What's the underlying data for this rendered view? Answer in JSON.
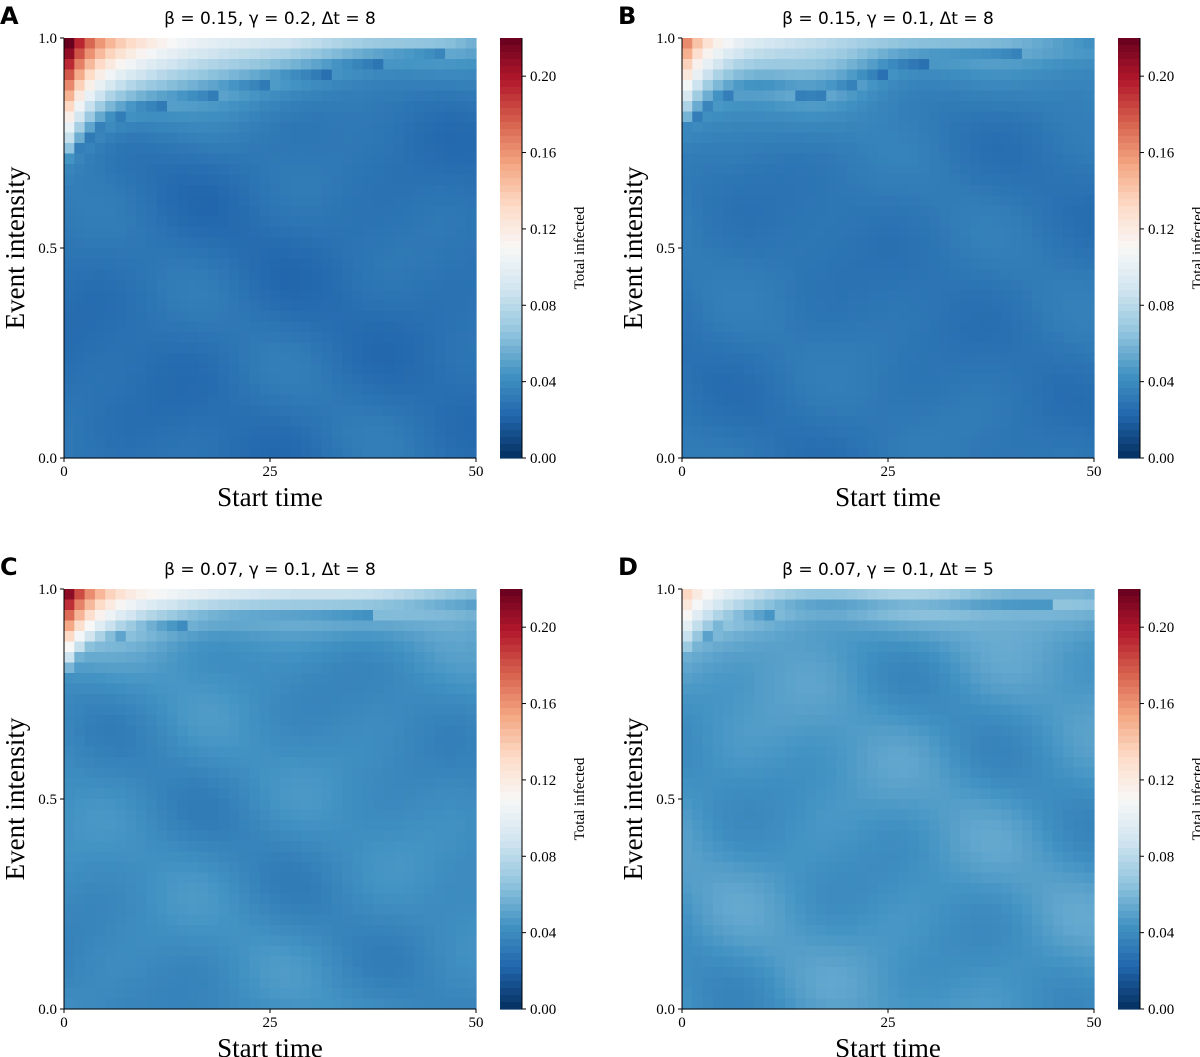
{
  "colormap": {
    "name": "RdBu_r",
    "stops": [
      "#053061",
      "#2166ac",
      "#4393c3",
      "#92c5de",
      "#d1e5f0",
      "#f7f7f7",
      "#fddbc7",
      "#f4a582",
      "#d6604d",
      "#b2182b",
      "#67001f"
    ]
  },
  "chart_data": [
    {
      "type": "heatmap",
      "panel": "A",
      "title": "β = 0.15,  γ = 0.2,  Δt = 8",
      "xlabel": "Start time",
      "ylabel": "Event intensity",
      "xlim": [
        0,
        50
      ],
      "ylim": [
        0.0,
        1.0
      ],
      "x_ticks": [
        "0",
        "25",
        "50"
      ],
      "y_ticks": [
        "0.0",
        "0.5",
        "1.0"
      ],
      "grid": [
        40,
        40
      ],
      "colorbar": {
        "label": "Total infected",
        "min": 0.0,
        "max": 0.22,
        "ticks": [
          "0.00",
          "0.04",
          "0.08",
          "0.12",
          "0.16",
          "0.20"
        ]
      },
      "regime": {
        "peak": 0.22,
        "front_base": 0.8,
        "front_slope": 0.0035,
        "front_dip": 0.0,
        "decay": 0.06,
        "background": 0.028,
        "noise": 0.006
      }
    },
    {
      "type": "heatmap",
      "panel": "B",
      "title": "β = 0.15,  γ = 0.1,  Δt = 8",
      "xlabel": "Start time",
      "ylabel": "Event intensity",
      "xlim": [
        0,
        50
      ],
      "ylim": [
        0.0,
        1.0
      ],
      "x_ticks": [
        "0",
        "25",
        "50"
      ],
      "y_ticks": [
        "0.0",
        "0.5",
        "1.0"
      ],
      "grid": [
        40,
        40
      ],
      "colorbar": {
        "label": "Total infected",
        "min": 0.0,
        "max": 0.22,
        "ticks": [
          "0.00",
          "0.04",
          "0.08",
          "0.12",
          "0.16",
          "0.20"
        ]
      },
      "regime": {
        "peak": 0.15,
        "front_base": 0.88,
        "front_slope": 0.002,
        "front_dip": 0.05,
        "decay": 0.07,
        "background": 0.03,
        "noise": 0.005
      }
    },
    {
      "type": "heatmap",
      "panel": "C",
      "title": "β = 0.07,  γ = 0.1,  Δt = 8",
      "xlabel": "Start time",
      "ylabel": "Event intensity",
      "xlim": [
        0,
        50
      ],
      "ylim": [
        0.0,
        1.0
      ],
      "x_ticks": [
        "0",
        "25",
        "50"
      ],
      "y_ticks": [
        "0.0",
        "0.5",
        "1.0"
      ],
      "grid": [
        40,
        40
      ],
      "colorbar": {
        "label": "Total infected",
        "min": 0.0,
        "max": 0.22,
        "ticks": [
          "0.00",
          "0.04",
          "0.08",
          "0.12",
          "0.16",
          "0.20"
        ]
      },
      "regime": {
        "peak": 0.19,
        "front_base": 0.9,
        "front_slope": 0.001,
        "front_dip": 0.0,
        "decay": 0.05,
        "background": 0.04,
        "noise": 0.008
      }
    },
    {
      "type": "heatmap",
      "panel": "D",
      "title": "β = 0.07,  γ = 0.1,  Δt = 5",
      "xlabel": "Start time",
      "ylabel": "Event intensity",
      "xlim": [
        0,
        50
      ],
      "ylim": [
        0.0,
        1.0
      ],
      "x_ticks": [
        "0",
        "25",
        "50"
      ],
      "y_ticks": [
        "0.0",
        "0.5",
        "1.0"
      ],
      "grid": [
        40,
        40
      ],
      "colorbar": {
        "label": "Total infected",
        "min": 0.0,
        "max": 0.22,
        "ticks": [
          "0.00",
          "0.04",
          "0.08",
          "0.12",
          "0.16",
          "0.20"
        ]
      },
      "regime": {
        "peak": 0.1,
        "front_base": 0.94,
        "front_slope": 0.0005,
        "front_dip": 0.0,
        "decay": 0.05,
        "background": 0.045,
        "noise": 0.009
      }
    }
  ]
}
